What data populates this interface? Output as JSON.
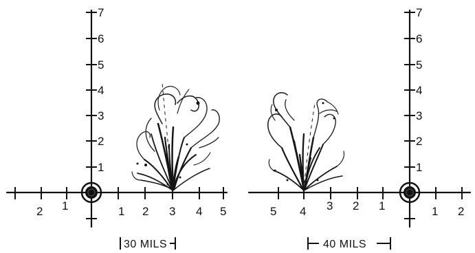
{
  "panels": [
    {
      "id": "left",
      "y_ticks": [
        "1",
        "2",
        "3",
        "4",
        "5",
        "6",
        "7"
      ],
      "x_ticks_left": [
        "2",
        "1"
      ],
      "x_ticks_right": [
        "1",
        "2",
        "3",
        "4",
        "5"
      ],
      "caption": "30 MILS"
    },
    {
      "id": "right",
      "y_ticks": [
        "1",
        "2",
        "3",
        "4",
        "5",
        "6",
        "7"
      ],
      "x_ticks_left": [
        "5",
        "4",
        "3",
        "2",
        "1"
      ],
      "x_ticks_right": [
        "1",
        "2"
      ],
      "caption": "40 MILS"
    }
  ]
}
